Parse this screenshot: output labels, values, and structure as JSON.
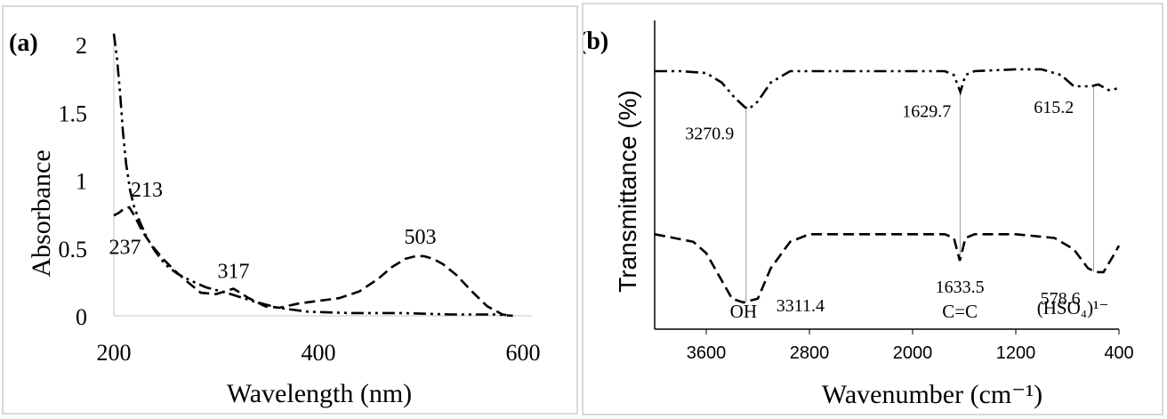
{
  "chart_data": [
    {
      "type": "line",
      "panel_label": "(a)",
      "xlabel": "Wavelength (nm)",
      "ylabel": "Absorbance",
      "xlim": [
        200,
        600
      ],
      "ylim": [
        0,
        2
      ],
      "x_ticks": [
        "200",
        "400",
        "600"
      ],
      "y_ticks": [
        "0",
        "0.5",
        "1",
        "1.5",
        "2"
      ],
      "series": [
        {
          "name": "dash-dot-dot",
          "style": "dash-dot-dot",
          "x": [
            200,
            203,
            206,
            209,
            212,
            216,
            220,
            225,
            232,
            240,
            250,
            262,
            275,
            290,
            310,
            335,
            360,
            390,
            430,
            480,
            530,
            560,
            575,
            590
          ],
          "y": [
            2.08,
            1.9,
            1.65,
            1.35,
            1.12,
            0.92,
            0.8,
            0.7,
            0.58,
            0.48,
            0.38,
            0.31,
            0.26,
            0.21,
            0.17,
            0.11,
            0.06,
            0.03,
            0.02,
            0.02,
            0.01,
            0.01,
            0.01,
            0.0
          ]
        },
        {
          "name": "dashed",
          "style": "dashed",
          "x": [
            200,
            205,
            210,
            215,
            220,
            228,
            237,
            248,
            260,
            272,
            285,
            300,
            317,
            332,
            348,
            362,
            380,
            400,
            420,
            440,
            458,
            472,
            485,
            495,
            503,
            512,
            522,
            535,
            550,
            565,
            580,
            590
          ],
          "y": [
            0.74,
            0.76,
            0.79,
            0.8,
            0.74,
            0.62,
            0.52,
            0.42,
            0.33,
            0.25,
            0.17,
            0.16,
            0.2,
            0.13,
            0.07,
            0.06,
            0.09,
            0.11,
            0.13,
            0.18,
            0.27,
            0.36,
            0.42,
            0.44,
            0.44,
            0.42,
            0.38,
            0.3,
            0.18,
            0.07,
            0.01,
            0.0
          ]
        }
      ],
      "annotations": [
        {
          "text": "213",
          "x": 213,
          "y": 0.8
        },
        {
          "text": "237",
          "x": 237,
          "y": 0.52
        },
        {
          "text": "317",
          "x": 317,
          "y": 0.2
        },
        {
          "text": "503",
          "x": 503,
          "y": 0.44
        }
      ]
    },
    {
      "type": "line",
      "panel_label": "(b)",
      "xlabel": "Wavenumber (cm⁻¹)",
      "ylabel": "Transmittance (%)",
      "xlim": [
        4000,
        400
      ],
      "x_ticks": [
        "3600",
        "2800",
        "2000",
        "1200",
        "400"
      ],
      "series": [
        {
          "name": "upper trace (dash-dot-dot)",
          "style": "dash-dot-dot",
          "x": [
            4000,
            3800,
            3600,
            3480,
            3380,
            3300,
            3270.9,
            3200,
            3100,
            2950,
            2800,
            2400,
            2000,
            1750,
            1680,
            1629.7,
            1590,
            1520,
            1200,
            1000,
            850,
            750,
            650,
            615.2,
            560,
            480,
            400
          ],
          "y": [
            95,
            95,
            94.5,
            92,
            88,
            85.5,
            85,
            87,
            92,
            95,
            95,
            95,
            95,
            95,
            94,
            89.5,
            94,
            95,
            95.5,
            95.5,
            94,
            91,
            91,
            91,
            91.5,
            90,
            90.5
          ],
          "labels": [
            "3270.9",
            "1629.7",
            "615.2"
          ]
        },
        {
          "name": "lower trace (dashed)",
          "style": "dashed",
          "x": [
            4000,
            3850,
            3700,
            3600,
            3500,
            3400,
            3311.4,
            3200,
            3100,
            2950,
            2800,
            2400,
            2000,
            1750,
            1680,
            1633.5,
            1590,
            1520,
            1200,
            900,
            750,
            640,
            578.6,
            520,
            450,
            400
          ],
          "y": [
            52,
            51,
            50,
            47,
            41,
            35,
            34,
            35,
            43,
            50,
            52,
            52,
            52,
            52,
            51,
            45,
            51,
            52,
            52,
            51,
            48,
            43,
            42,
            42,
            46,
            49
          ],
          "labels": [
            "3311.4",
            "1633.5",
            "578.6"
          ]
        }
      ],
      "assignments": [
        {
          "text": "OH",
          "x": 3311.4
        },
        {
          "text": "C=C",
          "x": 1633.5
        },
        {
          "text": "(HSO₄)¹⁻",
          "x": 578.6
        }
      ]
    }
  ]
}
